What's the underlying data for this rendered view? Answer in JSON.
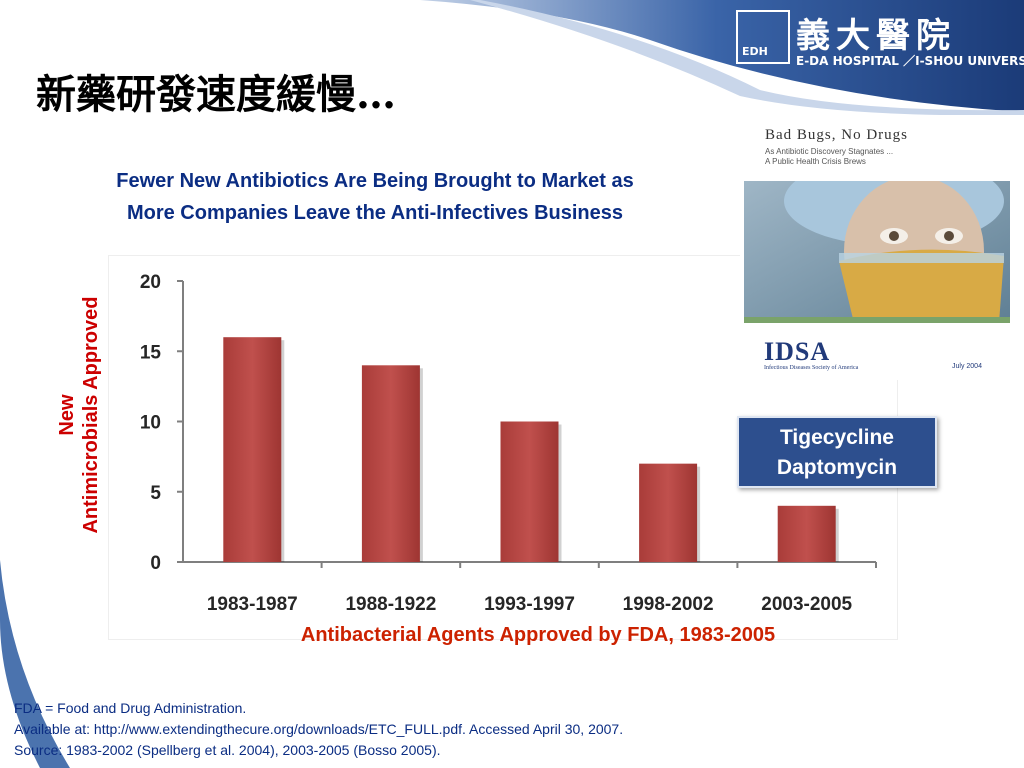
{
  "logo": {
    "mark": "EDH",
    "name_cn": "義大醫院",
    "name_en": "E-DA HOSPITAL ／I-SHOU UNIVERSITY"
  },
  "slide": {
    "title": "新藥研發速度緩慢…",
    "subtitle_line1": "Fewer New Antibiotics Are Being Brought to Market as",
    "subtitle_line2": "More Companies Leave the Anti-Infectives Business"
  },
  "chart_data": {
    "type": "bar",
    "categories": [
      "1983-1987",
      "1988-1922",
      "1993-1997",
      "1998-2002",
      "2003-2005"
    ],
    "values": [
      16,
      14,
      10,
      7,
      4
    ],
    "ylim": [
      0,
      20
    ],
    "yticks": [
      0,
      5,
      10,
      15,
      20
    ],
    "ylabel_line1": "New",
    "ylabel_line2": "Antimicrobials Approved",
    "xlabel": "Antibacterial Agents Approved by FDA, 1983-2005",
    "bar_color": "#c0504d",
    "grid": false
  },
  "cover": {
    "title": "Bad Bugs, No Drugs",
    "subtitle1": "As Antibiotic Discovery Stagnates ...",
    "subtitle2": "A Public Health Crisis Brews",
    "org": "IDSA",
    "org_full": "Infectious Diseases Society of America",
    "date": "July 2004"
  },
  "drug_box": {
    "line1": "Tigecycline",
    "line2": "Daptomycin"
  },
  "footnotes": {
    "line1": "FDA = Food and Drug Administration.",
    "line2": "Available at: http://www.extendingthecure.org/downloads/ETC_FULL.pdf. Accessed April 30, 2007.",
    "line3": "Source: 1983-2002 (Spellberg et al. 2004), 2003-2005 (Bosso 2005)."
  },
  "colors": {
    "header_dark": "#1f3f7a",
    "title_blue": "#0b2d83",
    "accent_red": "#cc0000"
  }
}
